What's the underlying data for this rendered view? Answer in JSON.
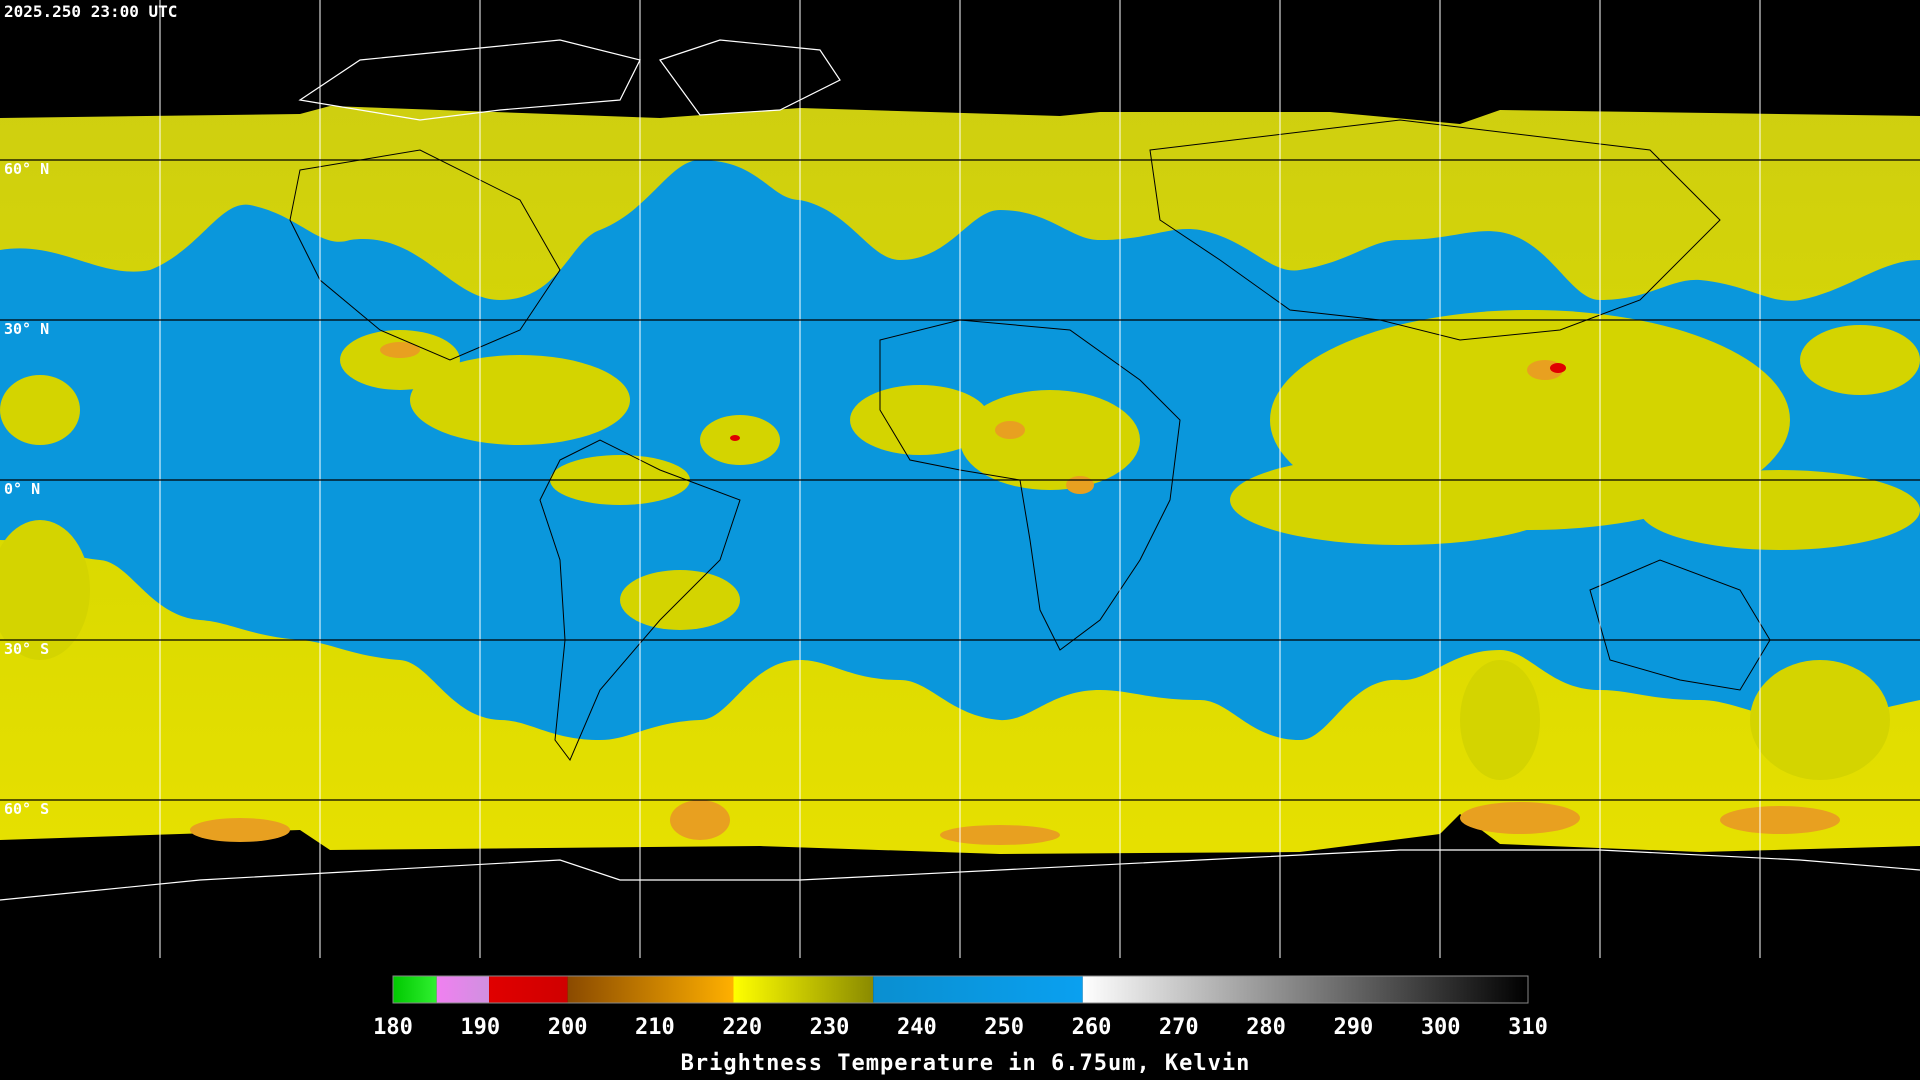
{
  "header": {
    "title": "2025.250 23:00 UTC"
  },
  "map": {
    "latitude_labels": [
      "60° N",
      "30° N",
      "0° N",
      "30° S",
      "60° S"
    ]
  },
  "colorbar": {
    "range": [
      180,
      310
    ],
    "ticks": [
      180,
      190,
      200,
      210,
      220,
      230,
      240,
      250,
      260,
      270,
      280,
      290,
      300,
      310
    ],
    "label": "Brightness Temperature in 6.75um, Kelvin",
    "segments": [
      {
        "from": 180,
        "to": 185,
        "colors": [
          "#00c800",
          "#30f030"
        ]
      },
      {
        "from": 185,
        "to": 191,
        "colors": [
          "#f080f0",
          "#d090e0"
        ]
      },
      {
        "from": 191,
        "to": 200,
        "colors": [
          "#e00000",
          "#d00000"
        ]
      },
      {
        "from": 200,
        "to": 219,
        "colors": [
          "#8a4a00",
          "#ffb000"
        ]
      },
      {
        "from": 219,
        "to": 235,
        "colors": [
          "#ffff00",
          "#8a8a00"
        ]
      },
      {
        "from": 235,
        "to": 259,
        "colors": [
          "#0a8fd0",
          "#0aa0f0"
        ]
      },
      {
        "from": 259,
        "to": 310,
        "colors": [
          "#ffffff",
          "#000000"
        ]
      }
    ]
  }
}
